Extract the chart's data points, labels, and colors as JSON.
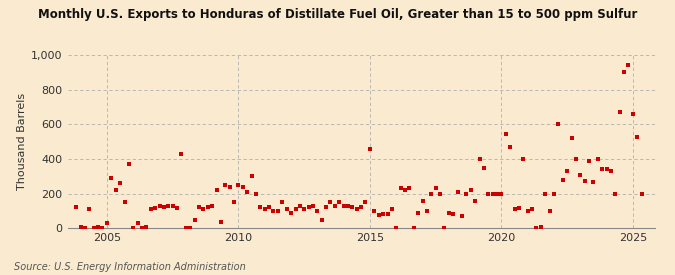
{
  "title": "Monthly U.S. Exports to Honduras of Distillate Fuel Oil, Greater than 15 to 500 ppm Sulfur",
  "ylabel": "Thousand Barrels",
  "source": "Source: U.S. Energy Information Administration",
  "bg_color": "#faebd0",
  "marker_color": "#cc0000",
  "xlim": [
    2003.5,
    2025.83
  ],
  "ylim": [
    0,
    1000
  ],
  "yticks": [
    0,
    200,
    400,
    600,
    800,
    1000
  ],
  "ytick_labels": [
    "0",
    "200",
    "400",
    "600",
    "800",
    "1,000"
  ],
  "xticks": [
    2005,
    2010,
    2015,
    2020,
    2025
  ],
  "data": [
    [
      2003.83,
      120
    ],
    [
      2004.0,
      5
    ],
    [
      2004.17,
      0
    ],
    [
      2004.33,
      110
    ],
    [
      2004.5,
      0
    ],
    [
      2004.67,
      5
    ],
    [
      2004.83,
      0
    ],
    [
      2005.0,
      30
    ],
    [
      2005.17,
      290
    ],
    [
      2005.33,
      220
    ],
    [
      2005.5,
      260
    ],
    [
      2005.67,
      150
    ],
    [
      2005.83,
      370
    ],
    [
      2006.0,
      0
    ],
    [
      2006.17,
      30
    ],
    [
      2006.33,
      0
    ],
    [
      2006.5,
      5
    ],
    [
      2006.67,
      110
    ],
    [
      2006.83,
      115
    ],
    [
      2007.0,
      130
    ],
    [
      2007.17,
      120
    ],
    [
      2007.33,
      130
    ],
    [
      2007.5,
      130
    ],
    [
      2007.67,
      115
    ],
    [
      2007.83,
      430
    ],
    [
      2008.0,
      0
    ],
    [
      2008.17,
      0
    ],
    [
      2008.33,
      50
    ],
    [
      2008.5,
      120
    ],
    [
      2008.67,
      110
    ],
    [
      2008.83,
      120
    ],
    [
      2009.0,
      130
    ],
    [
      2009.17,
      220
    ],
    [
      2009.33,
      35
    ],
    [
      2009.5,
      250
    ],
    [
      2009.67,
      240
    ],
    [
      2009.83,
      150
    ],
    [
      2010.0,
      250
    ],
    [
      2010.17,
      240
    ],
    [
      2010.33,
      210
    ],
    [
      2010.5,
      300
    ],
    [
      2010.67,
      200
    ],
    [
      2010.83,
      120
    ],
    [
      2011.0,
      110
    ],
    [
      2011.17,
      120
    ],
    [
      2011.33,
      100
    ],
    [
      2011.5,
      100
    ],
    [
      2011.67,
      150
    ],
    [
      2011.83,
      110
    ],
    [
      2012.0,
      90
    ],
    [
      2012.17,
      110
    ],
    [
      2012.33,
      130
    ],
    [
      2012.5,
      110
    ],
    [
      2012.67,
      120
    ],
    [
      2012.83,
      130
    ],
    [
      2013.0,
      100
    ],
    [
      2013.17,
      50
    ],
    [
      2013.33,
      120
    ],
    [
      2013.5,
      150
    ],
    [
      2013.67,
      130
    ],
    [
      2013.83,
      150
    ],
    [
      2014.0,
      130
    ],
    [
      2014.17,
      130
    ],
    [
      2014.33,
      120
    ],
    [
      2014.5,
      110
    ],
    [
      2014.67,
      120
    ],
    [
      2014.83,
      150
    ],
    [
      2015.0,
      455
    ],
    [
      2015.17,
      100
    ],
    [
      2015.33,
      75
    ],
    [
      2015.5,
      80
    ],
    [
      2015.67,
      80
    ],
    [
      2015.83,
      110
    ],
    [
      2016.0,
      0
    ],
    [
      2016.17,
      230
    ],
    [
      2016.33,
      220
    ],
    [
      2016.5,
      230
    ],
    [
      2016.67,
      0
    ],
    [
      2016.83,
      90
    ],
    [
      2017.0,
      160
    ],
    [
      2017.17,
      100
    ],
    [
      2017.33,
      200
    ],
    [
      2017.5,
      230
    ],
    [
      2017.67,
      200
    ],
    [
      2017.83,
      0
    ],
    [
      2018.0,
      90
    ],
    [
      2018.17,
      80
    ],
    [
      2018.33,
      210
    ],
    [
      2018.5,
      70
    ],
    [
      2018.67,
      200
    ],
    [
      2018.83,
      220
    ],
    [
      2019.0,
      160
    ],
    [
      2019.17,
      400
    ],
    [
      2019.33,
      350
    ],
    [
      2019.5,
      200
    ],
    [
      2019.67,
      200
    ],
    [
      2019.83,
      195
    ],
    [
      2020.0,
      195
    ],
    [
      2020.17,
      545
    ],
    [
      2020.33,
      470
    ],
    [
      2020.5,
      110
    ],
    [
      2020.67,
      115
    ],
    [
      2020.83,
      400
    ],
    [
      2021.0,
      100
    ],
    [
      2021.17,
      110
    ],
    [
      2021.33,
      0
    ],
    [
      2021.5,
      5
    ],
    [
      2021.67,
      200
    ],
    [
      2021.83,
      100
    ],
    [
      2022.0,
      200
    ],
    [
      2022.17,
      600
    ],
    [
      2022.33,
      280
    ],
    [
      2022.5,
      330
    ],
    [
      2022.67,
      520
    ],
    [
      2022.83,
      400
    ],
    [
      2023.0,
      310
    ],
    [
      2023.17,
      270
    ],
    [
      2023.33,
      390
    ],
    [
      2023.5,
      265
    ],
    [
      2023.67,
      400
    ],
    [
      2023.83,
      340
    ],
    [
      2024.0,
      340
    ],
    [
      2024.17,
      330
    ],
    [
      2024.33,
      200
    ],
    [
      2024.5,
      670
    ],
    [
      2024.67,
      900
    ],
    [
      2024.83,
      940
    ],
    [
      2025.0,
      660
    ],
    [
      2025.17,
      525
    ],
    [
      2025.33,
      200
    ]
  ]
}
